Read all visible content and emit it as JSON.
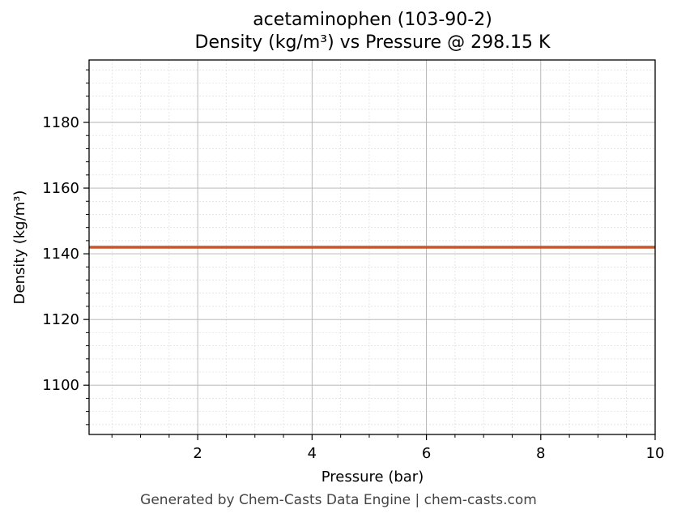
{
  "chart_data": {
    "type": "line",
    "title_line1": "acetaminophen (103-90-2)",
    "title_line2": "Density (kg/m³) vs Pressure @ 298.15 K",
    "xlabel": "Pressure (bar)",
    "ylabel": "Density (kg/m³)",
    "xlim": [
      0.1,
      10
    ],
    "ylim": [
      1085,
      1199
    ],
    "x_ticks": [
      2,
      4,
      6,
      8,
      10
    ],
    "y_ticks": [
      1100,
      1120,
      1140,
      1160,
      1180
    ],
    "grid": true,
    "series": [
      {
        "color": "#c8552b",
        "x": [
          0.1,
          1,
          2,
          3,
          4,
          5,
          6,
          7,
          8,
          9,
          10
        ],
        "y": [
          1142,
          1142,
          1142,
          1142,
          1142,
          1142,
          1142,
          1142,
          1142,
          1142,
          1142
        ]
      }
    ]
  },
  "footer": "Generated by Chem-Casts Data Engine | chem-casts.com"
}
